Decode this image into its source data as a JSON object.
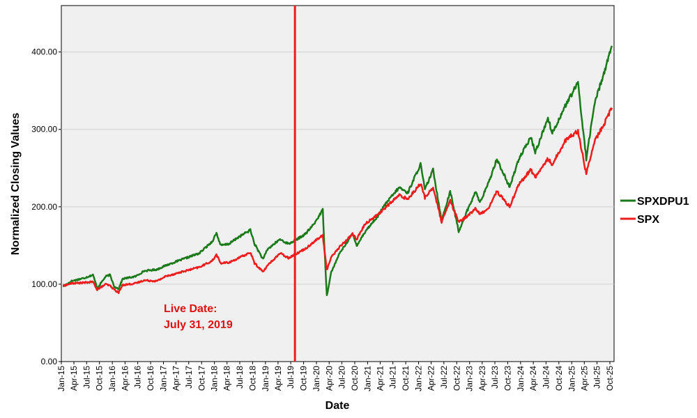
{
  "chart_data": {
    "type": "line",
    "xlabel": "Date",
    "ylabel": "Normalized Closing Values",
    "ylim": [
      0,
      460
    ],
    "xlim": [
      "2015-01-01",
      "2025-10-31"
    ],
    "y_ticks": [
      "0.00",
      "100.00",
      "200.00",
      "300.00",
      "400.00"
    ],
    "x_ticks": [
      "Jan-15",
      "Apr-15",
      "Jul-15",
      "Oct-15",
      "Jan-16",
      "Apr-16",
      "Jul-16",
      "Oct-16",
      "Jan-17",
      "Apr-17",
      "Jul-17",
      "Oct-17",
      "Jan-18",
      "Apr-18",
      "Jul-18",
      "Oct-18",
      "Jan-19",
      "Apr-19",
      "Jul-19",
      "Oct-19",
      "Jan-20",
      "Apr-20",
      "Jul-20",
      "Oct-20",
      "Jan-21",
      "Apr-21",
      "Jul-21",
      "Oct-21",
      "Jan-22",
      "Apr-22",
      "Jul-22",
      "Oct-22",
      "Jan-23",
      "Apr-23",
      "Jul-23",
      "Oct-23",
      "Jan-24",
      "Apr-24",
      "Jul-24",
      "Oct-24",
      "Jan-25",
      "Apr-25",
      "Jul-25",
      "Oct-25"
    ],
    "grid": "horizontal",
    "legend_position": "right",
    "background": "#f0f0f0",
    "series": [
      {
        "name": "SPXDPU1",
        "color": "#1a7a1a",
        "points": [
          [
            "2015-01",
            97
          ],
          [
            "2015-03",
            104
          ],
          [
            "2015-06",
            108
          ],
          [
            "2015-08",
            112
          ],
          [
            "2015-09",
            95
          ],
          [
            "2015-11",
            110
          ],
          [
            "2015-12",
            112
          ],
          [
            "2016-01",
            97
          ],
          [
            "2016-02",
            94
          ],
          [
            "2016-03",
            107
          ],
          [
            "2016-06",
            110
          ],
          [
            "2016-08",
            117
          ],
          [
            "2016-11",
            119
          ],
          [
            "2017-01",
            124
          ],
          [
            "2017-05",
            132
          ],
          [
            "2017-09",
            140
          ],
          [
            "2017-12",
            155
          ],
          [
            "2018-01",
            166
          ],
          [
            "2018-02",
            150
          ],
          [
            "2018-04",
            152
          ],
          [
            "2018-06",
            160
          ],
          [
            "2018-09",
            170
          ],
          [
            "2018-10",
            152
          ],
          [
            "2018-12",
            132
          ],
          [
            "2019-01",
            145
          ],
          [
            "2019-04",
            158
          ],
          [
            "2019-06",
            152
          ],
          [
            "2019-08",
            158
          ],
          [
            "2019-10",
            165
          ],
          [
            "2019-12",
            178
          ],
          [
            "2020-02",
            196
          ],
          [
            "2020-03",
            85
          ],
          [
            "2020-04",
            115
          ],
          [
            "2020-06",
            140
          ],
          [
            "2020-09",
            165
          ],
          [
            "2020-10",
            150
          ],
          [
            "2020-12",
            168
          ],
          [
            "2021-03",
            188
          ],
          [
            "2021-05",
            205
          ],
          [
            "2021-08",
            225
          ],
          [
            "2021-10",
            218
          ],
          [
            "2022-01",
            255
          ],
          [
            "2022-02",
            222
          ],
          [
            "2022-04",
            248
          ],
          [
            "2022-06",
            182
          ],
          [
            "2022-08",
            220
          ],
          [
            "2022-10",
            168
          ],
          [
            "2022-12",
            195
          ],
          [
            "2023-02",
            220
          ],
          [
            "2023-03",
            205
          ],
          [
            "2023-05",
            230
          ],
          [
            "2023-07",
            262
          ],
          [
            "2023-10",
            225
          ],
          [
            "2023-12",
            260
          ],
          [
            "2024-03",
            290
          ],
          [
            "2024-04",
            270
          ],
          [
            "2024-07",
            315
          ],
          [
            "2024-08",
            295
          ],
          [
            "2024-11",
            330
          ],
          [
            "2024-12",
            340
          ],
          [
            "2025-02",
            360
          ],
          [
            "2025-04",
            262
          ],
          [
            "2025-06",
            335
          ],
          [
            "2025-08",
            370
          ],
          [
            "2025-10",
            408
          ]
        ]
      },
      {
        "name": "SPX",
        "color": "#ee1c1c",
        "points": [
          [
            "2015-01",
            98
          ],
          [
            "2015-03",
            101
          ],
          [
            "2015-06",
            102
          ],
          [
            "2015-08",
            103
          ],
          [
            "2015-09",
            93
          ],
          [
            "2015-11",
            100
          ],
          [
            "2015-12",
            98
          ],
          [
            "2016-01",
            93
          ],
          [
            "2016-02",
            89
          ],
          [
            "2016-03",
            99
          ],
          [
            "2016-06",
            101
          ],
          [
            "2016-08",
            105
          ],
          [
            "2016-11",
            104
          ],
          [
            "2017-01",
            110
          ],
          [
            "2017-05",
            116
          ],
          [
            "2017-09",
            122
          ],
          [
            "2017-12",
            130
          ],
          [
            "2018-01",
            138
          ],
          [
            "2018-02",
            127
          ],
          [
            "2018-04",
            128
          ],
          [
            "2018-06",
            133
          ],
          [
            "2018-09",
            141
          ],
          [
            "2018-10",
            127
          ],
          [
            "2018-12",
            116
          ],
          [
            "2019-01",
            124
          ],
          [
            "2019-04",
            140
          ],
          [
            "2019-06",
            134
          ],
          [
            "2019-08",
            140
          ],
          [
            "2019-10",
            146
          ],
          [
            "2019-12",
            155
          ],
          [
            "2020-02",
            163
          ],
          [
            "2020-03",
            118
          ],
          [
            "2020-04",
            135
          ],
          [
            "2020-06",
            148
          ],
          [
            "2020-09",
            165
          ],
          [
            "2020-10",
            158
          ],
          [
            "2020-12",
            178
          ],
          [
            "2021-03",
            190
          ],
          [
            "2021-05",
            200
          ],
          [
            "2021-08",
            215
          ],
          [
            "2021-10",
            210
          ],
          [
            "2022-01",
            230
          ],
          [
            "2022-02",
            212
          ],
          [
            "2022-04",
            225
          ],
          [
            "2022-06",
            180
          ],
          [
            "2022-08",
            208
          ],
          [
            "2022-10",
            180
          ],
          [
            "2022-12",
            188
          ],
          [
            "2023-02",
            198
          ],
          [
            "2023-03",
            190
          ],
          [
            "2023-05",
            198
          ],
          [
            "2023-07",
            220
          ],
          [
            "2023-10",
            200
          ],
          [
            "2023-12",
            228
          ],
          [
            "2024-03",
            248
          ],
          [
            "2024-04",
            238
          ],
          [
            "2024-07",
            262
          ],
          [
            "2024-08",
            255
          ],
          [
            "2024-11",
            285
          ],
          [
            "2024-12",
            290
          ],
          [
            "2025-02",
            298
          ],
          [
            "2025-04",
            243
          ],
          [
            "2025-06",
            285
          ],
          [
            "2025-08",
            305
          ],
          [
            "2025-10",
            328
          ]
        ]
      }
    ],
    "vertical_line": {
      "date": "2019-07-31",
      "color": "#ee1c1c"
    },
    "annotation": {
      "lines": [
        "Live Date:",
        "July 31, 2019"
      ],
      "color": "#dd1111"
    }
  }
}
